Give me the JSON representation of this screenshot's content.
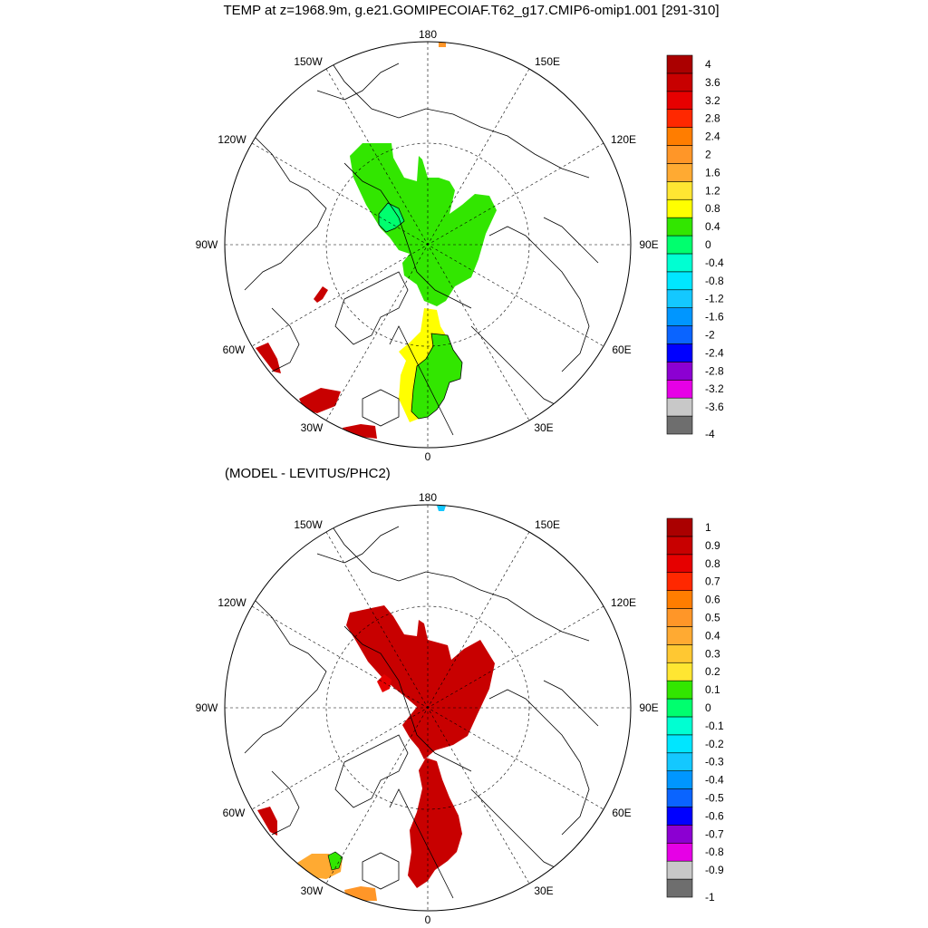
{
  "title": "TEMP at z=1968.9m, g.e21.GOMIPECOIAF.T62_g17.CMIP6-omip1.001 [291-310]",
  "subtitle": "(MODEL - LEVITUS/PHC2)",
  "panels": [
    {
      "id": "top",
      "lon_labels": {
        "180": "180",
        "150W": "150W",
        "150E": "150E",
        "120W": "120W",
        "120E": "120E",
        "90W": "90W",
        "90E": "90E",
        "60W": "60W",
        "60E": "60E",
        "30W": "30W",
        "30E": "30E",
        "0": "0"
      },
      "colorbar": {
        "colors": [
          "#6e6e6e",
          "#c8c8c8",
          "#e600e6",
          "#8c00d2",
          "#0000ff",
          "#0a64ff",
          "#0096ff",
          "#14c8ff",
          "#00e6ff",
          "#00ffd2",
          "#00ff6e",
          "#32e600",
          "#ffff00",
          "#ffe632",
          "#ffaa32",
          "#ff9628",
          "#ff7d00",
          "#ff2800",
          "#e60000",
          "#c80000",
          "#aa0000"
        ],
        "levels": [
          "-4",
          "-3.6",
          "-3.2",
          "-2.8",
          "-2.4",
          "-2",
          "-1.6",
          "-1.2",
          "-0.8",
          "-0.4",
          "0",
          "0.4",
          "0.8",
          "1.2",
          "1.6",
          "2",
          "2.4",
          "2.8",
          "3.2",
          "3.6",
          "4"
        ]
      }
    },
    {
      "id": "bottom",
      "lon_labels": {
        "180": "180",
        "150W": "150W",
        "150E": "150E",
        "120W": "120W",
        "120E": "120E",
        "90W": "90W",
        "90E": "90E",
        "60W": "60W",
        "60E": "60E",
        "30W": "30W",
        "30E": "30E",
        "0": "0"
      },
      "colorbar": {
        "colors": [
          "#6e6e6e",
          "#c8c8c8",
          "#e600e6",
          "#8c00d2",
          "#0000ff",
          "#0a64ff",
          "#0096ff",
          "#14c8ff",
          "#00e6ff",
          "#00ffd2",
          "#00ff6e",
          "#32e600",
          "#ffe632",
          "#ffc832",
          "#ffaa32",
          "#ff9628",
          "#ff7d00",
          "#ff2800",
          "#e60000",
          "#c80000",
          "#aa0000"
        ],
        "levels": [
          "-1",
          "-0.9",
          "-0.8",
          "-0.7",
          "-0.6",
          "-0.5",
          "-0.4",
          "-0.3",
          "-0.2",
          "-0.1",
          "0",
          "0.1",
          "0.2",
          "0.3",
          "0.4",
          "0.5",
          "0.6",
          "0.7",
          "0.8",
          "0.9",
          "1"
        ]
      }
    }
  ],
  "fill_colors": {
    "green": "#32e600",
    "teal_green": "#00ff6e",
    "yellow": "#ffff00",
    "dark_red": "#c80000",
    "red": "#e60000",
    "orange_light": "#ffaa32",
    "orange": "#ff9628",
    "cyan": "#14c8ff"
  }
}
